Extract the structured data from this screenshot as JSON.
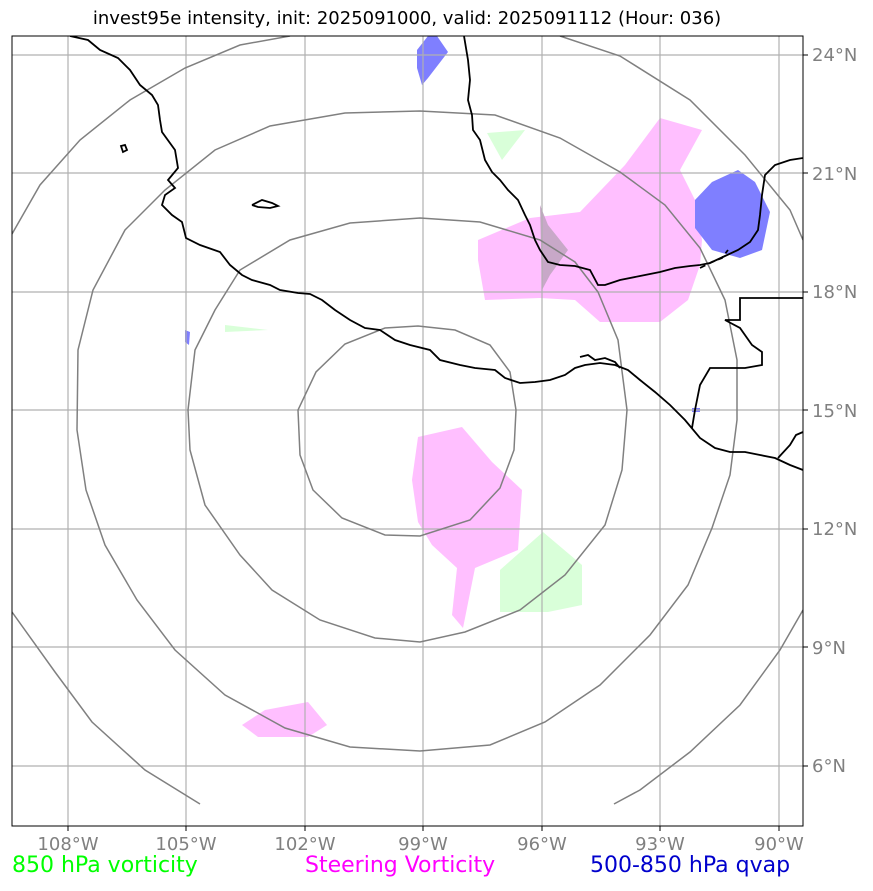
{
  "title": "invest95e intensity, init: 2025091000, valid: 2025091112 (Hour: 036)",
  "lat_labels": [
    "24°N",
    "21°N",
    "18°N",
    "15°N",
    "12°N",
    "9°N",
    "6°N"
  ],
  "lon_labels": [
    "108°W",
    "105°W",
    "102°W",
    "99°W",
    "96°W",
    "93°W",
    "90°W"
  ],
  "legend": [
    {
      "label": "850 hPa vorticity",
      "color": "#00ff00"
    },
    {
      "label": "Steering Vorticity",
      "color": "#ff00ff"
    },
    {
      "label": "500-850 hPa qvap",
      "color": "#0000cc"
    }
  ],
  "colors": {
    "vorticity_fill": "#d9ffd9",
    "steering_fill": "#ffbfff",
    "qvap_fill": "#7f7fff",
    "grid": "#b0b0b0",
    "range_rings": "#808080",
    "coastline": "#000000"
  }
}
